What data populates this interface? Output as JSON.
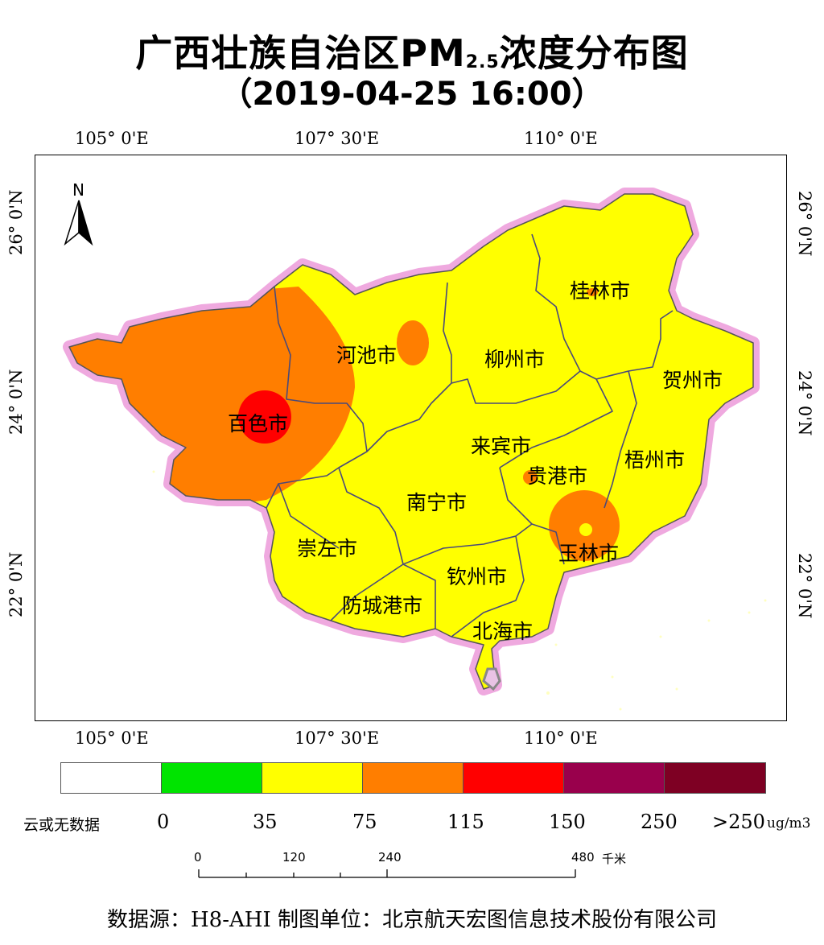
{
  "title": {
    "main": "广西壮族自治区PM",
    "sub": "2.5",
    "suffix": "浓度分布图",
    "datetime": "（2019-04-25 16:00）"
  },
  "coordinates": {
    "top_lon": [
      "105° 0'E",
      "107° 30'E",
      "110° 0'E"
    ],
    "bottom_lon": [
      "105° 0'E",
      "107° 30'E",
      "110° 0'E"
    ],
    "left_lat": [
      "26° 0'N",
      "24° 0'N",
      "22° 0'N"
    ],
    "right_lat": [
      "26° 0'N",
      "24° 0'N",
      "22° 0'N"
    ]
  },
  "north_arrow": {
    "label": "N"
  },
  "cities": [
    {
      "id": "guilin",
      "name": "桂林市"
    },
    {
      "id": "hechi",
      "name": "河池市"
    },
    {
      "id": "liuzhou",
      "name": "柳州市"
    },
    {
      "id": "hezhou",
      "name": "贺州市"
    },
    {
      "id": "baise",
      "name": "百色市"
    },
    {
      "id": "laibin",
      "name": "来宾市"
    },
    {
      "id": "guigang",
      "name": "贵港市"
    },
    {
      "id": "wuzhou",
      "name": "梧州市"
    },
    {
      "id": "nanning",
      "name": "南宁市"
    },
    {
      "id": "chongzuo",
      "name": "崇左市"
    },
    {
      "id": "yulin",
      "name": "玉林市"
    },
    {
      "id": "qinzhou",
      "name": "钦州市"
    },
    {
      "id": "fangchenggang",
      "name": "防城港市"
    },
    {
      "id": "beihai",
      "name": "北海市"
    }
  ],
  "legend": {
    "colors": [
      "#ffffff",
      "#00e400",
      "#ffff00",
      "#ff7e00",
      "#ff0000",
      "#99004c",
      "#7e0023"
    ],
    "labels": [
      "云或无数据",
      "0",
      "35",
      "75",
      "115",
      "150",
      "250",
      ">250"
    ],
    "unit": "ug/m3"
  },
  "scale_bar": {
    "ticks": [
      "0",
      "120",
      "240",
      "480"
    ],
    "unit": "千米"
  },
  "credits": "数据源：H8-AHI 制图单位：北京航天宏图信息技术股份有限公司"
}
